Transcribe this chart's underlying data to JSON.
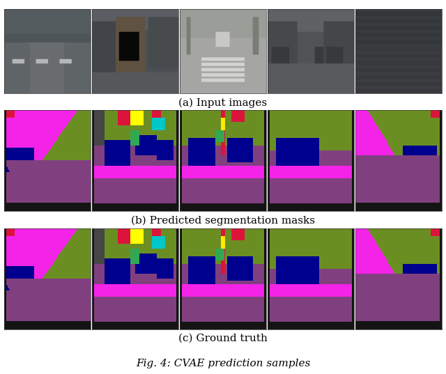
{
  "title": "Fig. 4: CVAE prediction samples",
  "caption_a": "(a) Input images",
  "caption_b": "(b) Predicted segmentation masks",
  "caption_c": "(c) Ground truth",
  "n_cols": 5,
  "fig_width": 6.4,
  "fig_height": 5.37,
  "background_color": "#ffffff",
  "caption_fontsize": 11,
  "title_fontsize": 11,
  "road_color": [
    128,
    64,
    128
  ],
  "vegetation_color": [
    107,
    142,
    35
  ],
  "car_color": [
    0,
    0,
    142
  ],
  "sidewalk_color": [
    244,
    35,
    232
  ],
  "building_color": [
    70,
    70,
    70
  ],
  "red_color": [
    220,
    20,
    60
  ],
  "yellow_color": [
    255,
    235,
    0
  ],
  "cyan_color": [
    0,
    255,
    255
  ],
  "magenta_color": [
    255,
    0,
    255
  ],
  "green_color": [
    0,
    128,
    0
  ],
  "black_color": [
    0,
    0,
    0
  ],
  "white_color": [
    255,
    255,
    255
  ]
}
